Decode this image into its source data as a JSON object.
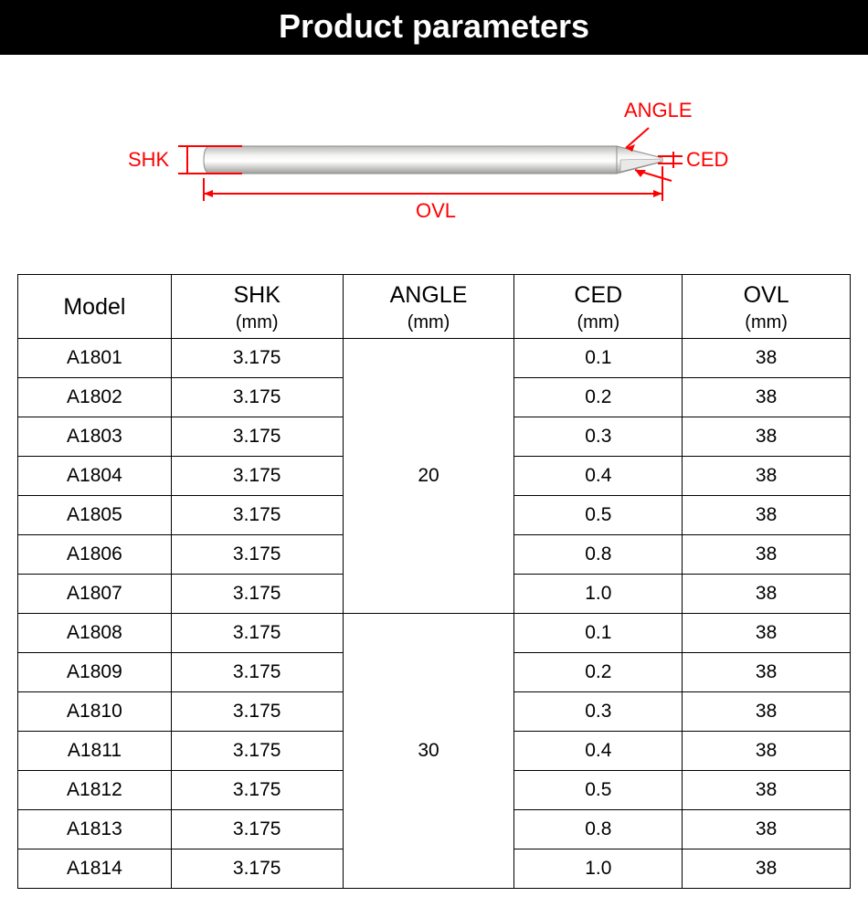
{
  "title": "Product parameters",
  "diagram": {
    "annotation_color": "#ff0000",
    "labels": {
      "shk": "SHK",
      "angle": "ANGLE",
      "ced": "CED",
      "ovl": "OVL"
    },
    "label_fontsize": 22,
    "tool": {
      "shank_fill": "#d3d3d2",
      "shank_stroke": "#8a8a88",
      "highlight": "#f3f3f2",
      "shank_length": 445,
      "shank_height": 30,
      "tip_length": 50
    }
  },
  "table": {
    "columns": [
      {
        "main": "Model",
        "unit": ""
      },
      {
        "main": "SHK",
        "unit": "(mm)"
      },
      {
        "main": "ANGLE",
        "unit": "(mm)"
      },
      {
        "main": "CED",
        "unit": "(mm)"
      },
      {
        "main": "OVL",
        "unit": "(mm)"
      }
    ],
    "groups": [
      {
        "angle": "20",
        "rows": [
          {
            "model": "A1801",
            "shk": "3.175",
            "ced": "0.1",
            "ovl": "38"
          },
          {
            "model": "A1802",
            "shk": "3.175",
            "ced": "0.2",
            "ovl": "38"
          },
          {
            "model": "A1803",
            "shk": "3.175",
            "ced": "0.3",
            "ovl": "38"
          },
          {
            "model": "A1804",
            "shk": "3.175",
            "ced": "0.4",
            "ovl": "38"
          },
          {
            "model": "A1805",
            "shk": "3.175",
            "ced": "0.5",
            "ovl": "38"
          },
          {
            "model": "A1806",
            "shk": "3.175",
            "ced": "0.8",
            "ovl": "38"
          },
          {
            "model": "A1807",
            "shk": "3.175",
            "ced": "1.0",
            "ovl": "38"
          }
        ]
      },
      {
        "angle": "30",
        "rows": [
          {
            "model": "A1808",
            "shk": "3.175",
            "ced": "0.1",
            "ovl": "38"
          },
          {
            "model": "A1809",
            "shk": "3.175",
            "ced": "0.2",
            "ovl": "38"
          },
          {
            "model": "A1810",
            "shk": "3.175",
            "ced": "0.3",
            "ovl": "38"
          },
          {
            "model": "A1811",
            "shk": "3.175",
            "ced": "0.4",
            "ovl": "38"
          },
          {
            "model": "A1812",
            "shk": "3.175",
            "ced": "0.5",
            "ovl": "38"
          },
          {
            "model": "A1813",
            "shk": "3.175",
            "ced": "0.8",
            "ovl": "38"
          },
          {
            "model": "A1814",
            "shk": "3.175",
            "ced": "1.0",
            "ovl": "38"
          }
        ]
      }
    ]
  }
}
